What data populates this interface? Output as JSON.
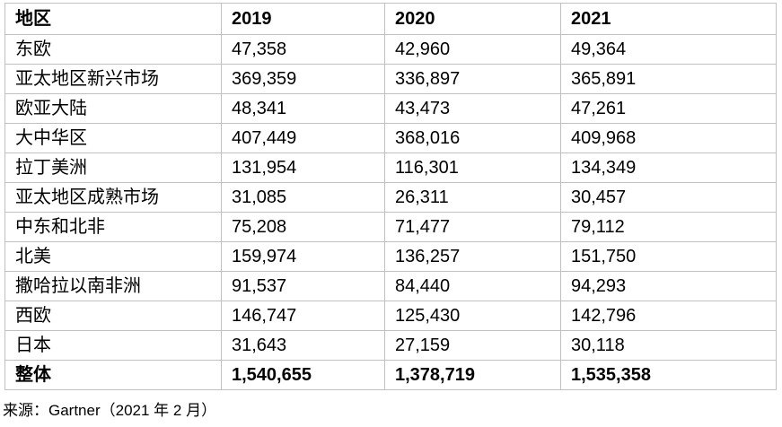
{
  "table": {
    "columns": [
      "地区",
      "2019",
      "2020",
      "2021"
    ],
    "rows": [
      {
        "label": "东欧",
        "values": [
          "47,358",
          "42,960",
          "49,364"
        ]
      },
      {
        "label": "亚太地区新兴市场",
        "values": [
          "369,359",
          "336,897",
          "365,891"
        ]
      },
      {
        "label": "欧亚大陆",
        "values": [
          "48,341",
          "43,473",
          "47,261"
        ]
      },
      {
        "label": "大中华区",
        "values": [
          "407,449",
          "368,016",
          "409,968"
        ]
      },
      {
        "label": "拉丁美洲",
        "values": [
          "131,954",
          "116,301",
          "134,349"
        ]
      },
      {
        "label": "亚太地区成熟市场",
        "values": [
          "31,085",
          "26,311",
          "30,457"
        ]
      },
      {
        "label": "中东和北非",
        "values": [
          "75,208",
          "71,477",
          "79,112"
        ]
      },
      {
        "label": "北美",
        "values": [
          "159,974",
          "136,257",
          "151,750"
        ]
      },
      {
        "label": "撒哈拉以南非洲",
        "values": [
          "91,537",
          "84,440",
          "94,293"
        ]
      },
      {
        "label": "西欧",
        "values": [
          "146,747",
          "125,430",
          "142,796"
        ]
      },
      {
        "label": "日本",
        "values": [
          "31,643",
          "27,159",
          "30,118"
        ]
      },
      {
        "label": "整体",
        "values": [
          "1,540,655",
          "1,378,719",
          "1,535,358"
        ]
      }
    ]
  },
  "source_note": "来源：Gartner（2021 年 2 月）",
  "colors": {
    "border": "#c0c0c0",
    "text": "#000000",
    "background": "#ffffff"
  },
  "chart_data": {
    "type": "table",
    "title": "",
    "categories": [
      "东欧",
      "亚太地区新兴市场",
      "欧亚大陆",
      "大中华区",
      "拉丁美洲",
      "亚太地区成熟市场",
      "中东和北非",
      "北美",
      "撒哈拉以南非洲",
      "西欧",
      "日本",
      "整体"
    ],
    "series": [
      {
        "name": "2019",
        "values": [
          47358,
          369359,
          48341,
          407449,
          131954,
          31085,
          75208,
          159974,
          91537,
          146747,
          31643,
          1540655
        ]
      },
      {
        "name": "2020",
        "values": [
          42960,
          336897,
          43473,
          368016,
          116301,
          26311,
          71477,
          136257,
          84440,
          125430,
          27159,
          1378719
        ]
      },
      {
        "name": "2021",
        "values": [
          49364,
          365891,
          47261,
          409968,
          134349,
          30457,
          79112,
          151750,
          94293,
          142796,
          30118,
          1535358
        ]
      }
    ],
    "source": "来源：Gartner（2021 年 2 月）"
  }
}
